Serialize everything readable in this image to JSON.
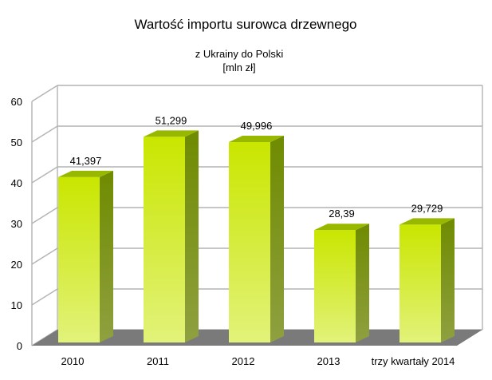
{
  "chart_data": {
    "type": "bar",
    "title": "Wartość importu surowca drzewnego",
    "subtitle_lines": [
      "z Ukrainy do Polski",
      "[mln zł]"
    ],
    "categories": [
      "2010",
      "2011",
      "2012",
      "2013",
      "trzy kwartały 2014"
    ],
    "values": [
      41.397,
      51.299,
      49.996,
      28.39,
      29.729
    ],
    "value_labels": [
      "41,397",
      "51,299",
      "49,996",
      "28,39",
      "29,729"
    ],
    "y_ticks": [
      "0",
      "10",
      "20",
      "30",
      "40",
      "50",
      "60"
    ],
    "ylim": [
      0,
      60
    ],
    "xlabel": "",
    "ylabel": "",
    "grid": true,
    "legend": "none",
    "colors": {
      "bar_front_top": "#c9e600",
      "bar_front_bottom": "#e2f27a",
      "bar_side": "#6f8b00",
      "bar_top": "#98b800",
      "floor": "#7a7a7a",
      "grid": "#b3b3b3"
    }
  }
}
